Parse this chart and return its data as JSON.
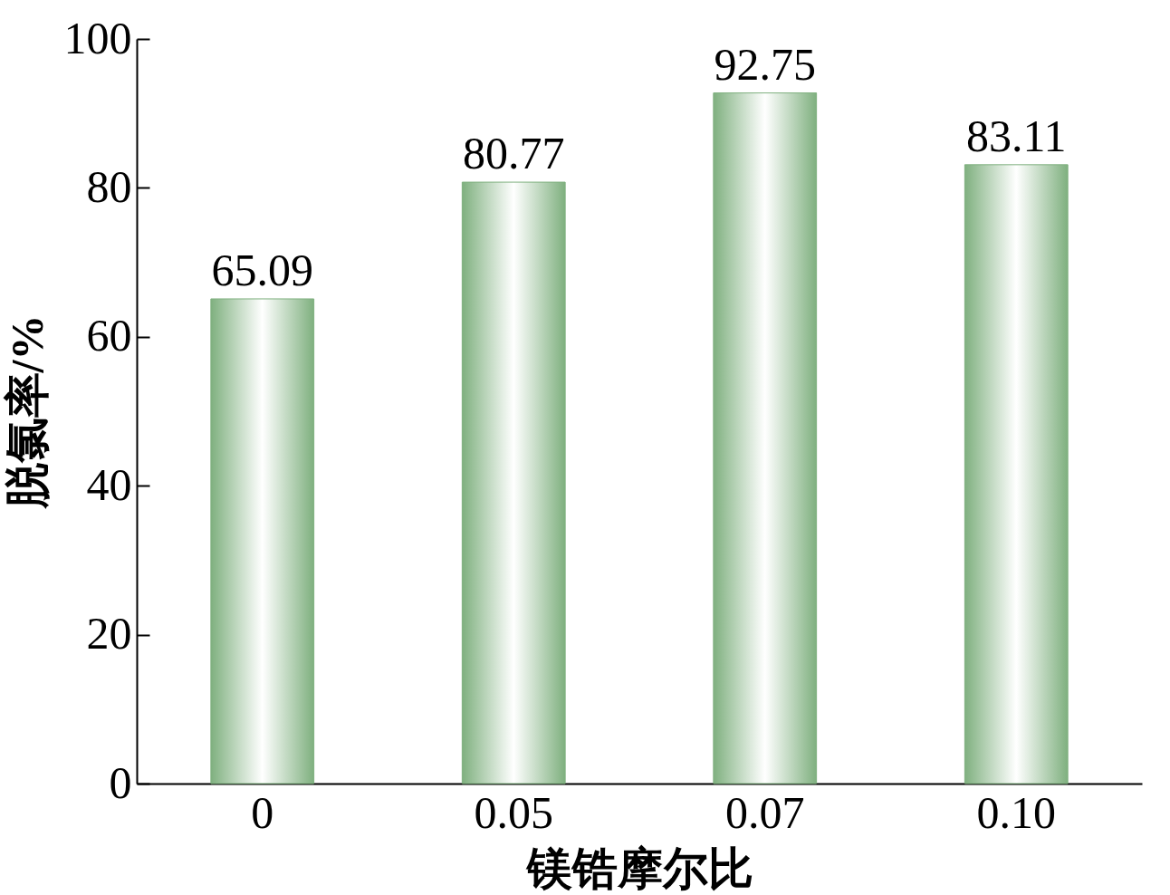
{
  "chart_data": {
    "type": "bar",
    "xlabel": "镁锆摩尔比",
    "ylabel": "脱氯率/%",
    "categories": [
      "0",
      "0.05",
      "0.07",
      "0.10"
    ],
    "values": [
      65.09,
      80.77,
      92.75,
      83.11
    ],
    "color": "#7fb07f",
    "ylim": [
      0,
      100
    ],
    "yticks": [
      0,
      20,
      40,
      60,
      80,
      100
    ],
    "data_labels": true,
    "grid": false
  }
}
